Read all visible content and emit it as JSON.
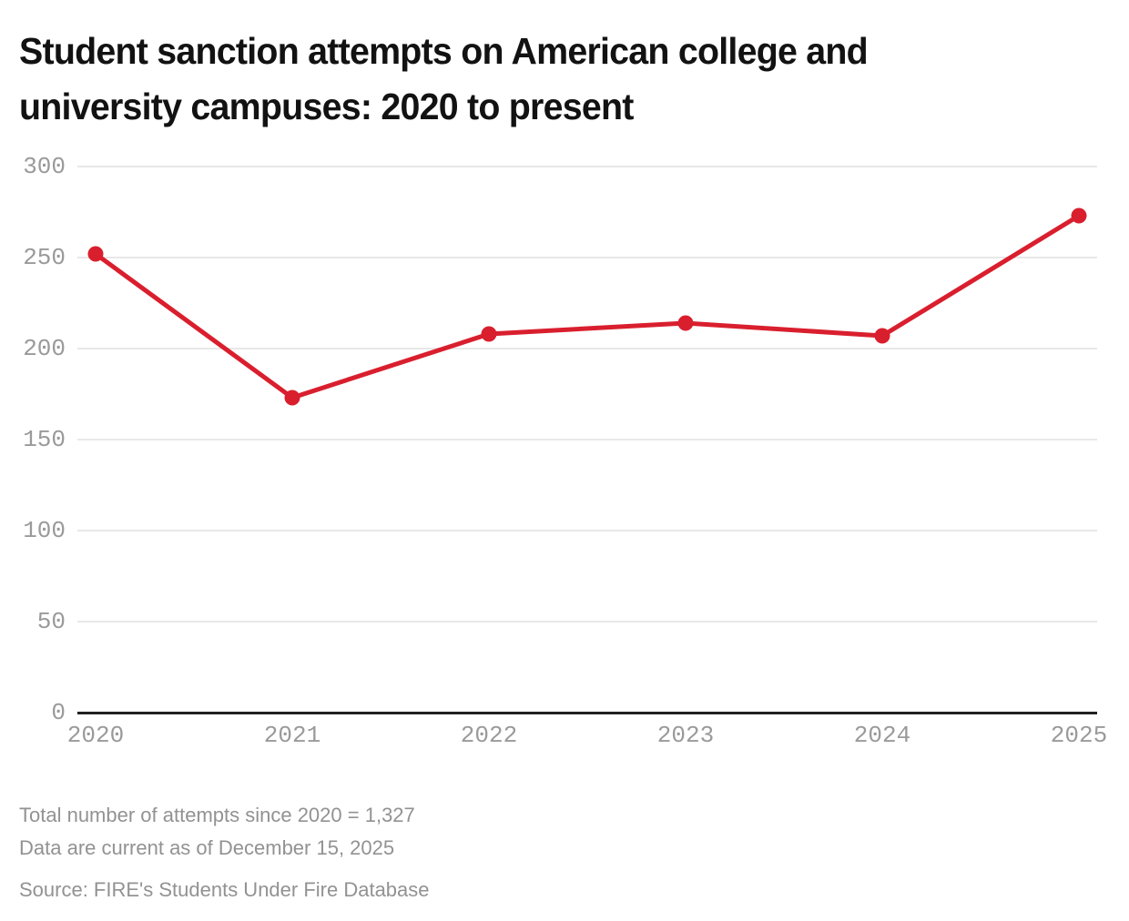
{
  "header": {
    "title_lines": [
      "Student sanction attempts on American college and",
      "university campuses: 2020 to present"
    ]
  },
  "chart_data": {
    "type": "line",
    "title": "Student sanction attempts on American college and university campuses: 2020 to present",
    "x": [
      "2020",
      "2021",
      "2022",
      "2023",
      "2024",
      "2025"
    ],
    "series": [
      {
        "name": "Student sanction attempts",
        "values": [
          252,
          173,
          208,
          214,
          207,
          273
        ]
      }
    ],
    "xlabel": "",
    "ylabel": "",
    "ylim": [
      0,
      300
    ],
    "yticks": [
      0,
      50,
      100,
      150,
      200,
      250,
      300
    ],
    "grid": true,
    "legend": false,
    "line_color": "#d91f2e",
    "point_color": "#d91f2e",
    "gridline_color": "#e8e8e8",
    "axis_line_color": "#212121",
    "tick_label_color": "#9a9a9a"
  },
  "footer": {
    "note_line1": "Total number of attempts since 2020 = 1,327",
    "note_line2": "Data are current as of December 15, 2025",
    "source": "Source: FIRE's Students Under Fire Database"
  }
}
